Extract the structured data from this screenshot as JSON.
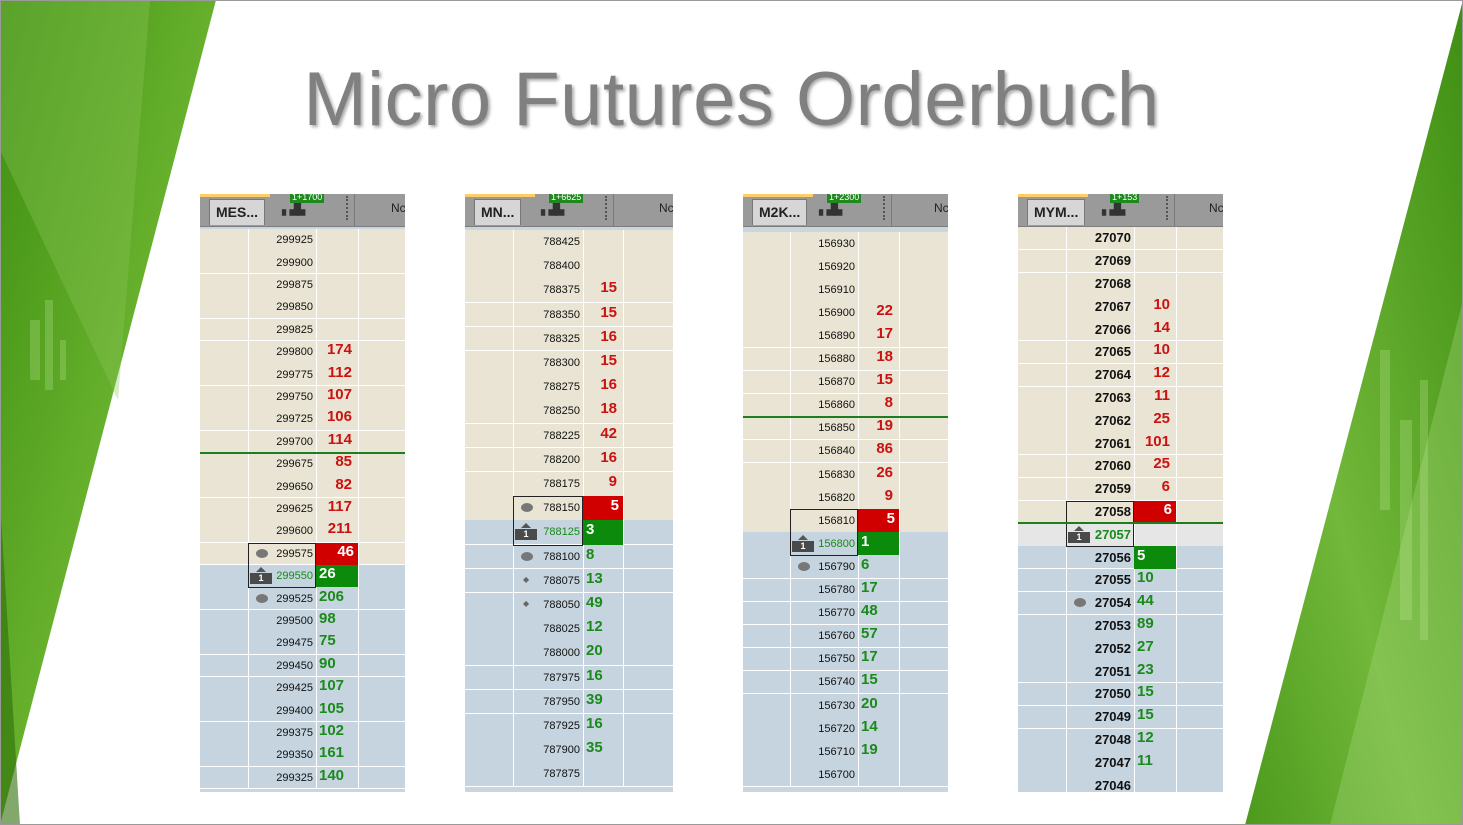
{
  "title": "Micro Futures Orderbuch",
  "colors": {
    "bg_green": "#4f9a1c",
    "ask_bg": "#e9e4d3",
    "bid_bg": "#c5d4df",
    "ask_text": "#cc1111",
    "bid_text": "#1a8a1a",
    "ask_box": "#d00000",
    "bid_box": "#0b8a0b"
  },
  "ladders": [
    {
      "symbol": "MES...",
      "delta": "1+1700",
      "header_right": "Nc",
      "last_price": "299550",
      "rows": [
        {
          "price": "299925",
          "side": "ask",
          "vol": ""
        },
        {
          "price": "299900",
          "side": "ask",
          "vol": ""
        },
        {
          "price": "299875",
          "side": "ask",
          "vol": ""
        },
        {
          "price": "299850",
          "side": "ask",
          "vol": ""
        },
        {
          "price": "299825",
          "side": "ask",
          "vol": ""
        },
        {
          "price": "299800",
          "side": "ask",
          "vol": "174"
        },
        {
          "price": "299775",
          "side": "ask",
          "vol": "112"
        },
        {
          "price": "299750",
          "side": "ask",
          "vol": "107"
        },
        {
          "price": "299725",
          "side": "ask",
          "vol": "106"
        },
        {
          "price": "299700",
          "side": "ask",
          "vol": "114"
        },
        {
          "price": "299675",
          "side": "ask",
          "vol": "85"
        },
        {
          "price": "299650",
          "side": "ask",
          "vol": "82"
        },
        {
          "price": "299625",
          "side": "ask",
          "vol": "117"
        },
        {
          "price": "299600",
          "side": "ask",
          "vol": "211"
        },
        {
          "price": "299575",
          "side": "ask",
          "vol": "46",
          "best": true,
          "order": "dot"
        },
        {
          "price": "299550",
          "side": "bid",
          "vol": "26",
          "best": true,
          "last": true,
          "position": "1"
        },
        {
          "price": "299525",
          "side": "bid",
          "vol": "206",
          "order": "dot"
        },
        {
          "price": "299500",
          "side": "bid",
          "vol": "98"
        },
        {
          "price": "299475",
          "side": "bid",
          "vol": "75"
        },
        {
          "price": "299450",
          "side": "bid",
          "vol": "90"
        },
        {
          "price": "299425",
          "side": "bid",
          "vol": "107"
        },
        {
          "price": "299400",
          "side": "bid",
          "vol": "105"
        },
        {
          "price": "299375",
          "side": "bid",
          "vol": "102"
        },
        {
          "price": "299350",
          "side": "bid",
          "vol": "161"
        },
        {
          "price": "299325",
          "side": "bid",
          "vol": "140"
        }
      ]
    },
    {
      "symbol": "MN...",
      "delta": "1+6625",
      "header_right": "Nc",
      "last_price": "788125",
      "rows": [
        {
          "price": "788425",
          "side": "ask",
          "vol": ""
        },
        {
          "price": "788400",
          "side": "ask",
          "vol": ""
        },
        {
          "price": "788375",
          "side": "ask",
          "vol": "15"
        },
        {
          "price": "788350",
          "side": "ask",
          "vol": "15"
        },
        {
          "price": "788325",
          "side": "ask",
          "vol": "16"
        },
        {
          "price": "788300",
          "side": "ask",
          "vol": "15"
        },
        {
          "price": "788275",
          "side": "ask",
          "vol": "16"
        },
        {
          "price": "788250",
          "side": "ask",
          "vol": "18"
        },
        {
          "price": "788225",
          "side": "ask",
          "vol": "42"
        },
        {
          "price": "788200",
          "side": "ask",
          "vol": "16"
        },
        {
          "price": "788175",
          "side": "ask",
          "vol": "9"
        },
        {
          "price": "788150",
          "side": "ask",
          "vol": "5",
          "best": true,
          "order": "dot"
        },
        {
          "price": "788125",
          "side": "bid",
          "vol": "3",
          "best": true,
          "last": true,
          "position": "1"
        },
        {
          "price": "788100",
          "side": "bid",
          "vol": "8",
          "order": "dot"
        },
        {
          "price": "788075",
          "side": "bid",
          "vol": "13",
          "order": "diamond"
        },
        {
          "price": "788050",
          "side": "bid",
          "vol": "49",
          "order": "diamond"
        },
        {
          "price": "788025",
          "side": "bid",
          "vol": "12"
        },
        {
          "price": "788000",
          "side": "bid",
          "vol": "20"
        },
        {
          "price": "787975",
          "side": "bid",
          "vol": "16"
        },
        {
          "price": "787950",
          "side": "bid",
          "vol": "39"
        },
        {
          "price": "787925",
          "side": "bid",
          "vol": "16"
        },
        {
          "price": "787900",
          "side": "bid",
          "vol": "35"
        },
        {
          "price": "787875",
          "side": "bid",
          "vol": ""
        }
      ]
    },
    {
      "symbol": "M2K...",
      "delta": "1+2300",
      "header_right": "Nc",
      "last_price": "156800",
      "rows": [
        {
          "price": "156930",
          "side": "ask",
          "vol": ""
        },
        {
          "price": "156920",
          "side": "ask",
          "vol": ""
        },
        {
          "price": "156910",
          "side": "ask",
          "vol": ""
        },
        {
          "price": "156900",
          "side": "ask",
          "vol": "22"
        },
        {
          "price": "156890",
          "side": "ask",
          "vol": "17"
        },
        {
          "price": "156880",
          "side": "ask",
          "vol": "18"
        },
        {
          "price": "156870",
          "side": "ask",
          "vol": "15"
        },
        {
          "price": "156860",
          "side": "ask",
          "vol": "8"
        },
        {
          "price": "156850",
          "side": "ask",
          "vol": "19"
        },
        {
          "price": "156840",
          "side": "ask",
          "vol": "86"
        },
        {
          "price": "156830",
          "side": "ask",
          "vol": "26"
        },
        {
          "price": "156820",
          "side": "ask",
          "vol": "9"
        },
        {
          "price": "156810",
          "side": "ask",
          "vol": "5",
          "best": true
        },
        {
          "price": "156800",
          "side": "bid",
          "vol": "1",
          "best": true,
          "last": true,
          "position": "1"
        },
        {
          "price": "156790",
          "side": "bid",
          "vol": "6",
          "order": "dot"
        },
        {
          "price": "156780",
          "side": "bid",
          "vol": "17"
        },
        {
          "price": "156770",
          "side": "bid",
          "vol": "48"
        },
        {
          "price": "156760",
          "side": "bid",
          "vol": "57"
        },
        {
          "price": "156750",
          "side": "bid",
          "vol": "17"
        },
        {
          "price": "156740",
          "side": "bid",
          "vol": "15"
        },
        {
          "price": "156730",
          "side": "bid",
          "vol": "20"
        },
        {
          "price": "156720",
          "side": "bid",
          "vol": "14"
        },
        {
          "price": "156710",
          "side": "bid",
          "vol": "19"
        },
        {
          "price": "156700",
          "side": "bid",
          "vol": ""
        }
      ]
    },
    {
      "symbol": "MYM...",
      "delta": "1+153",
      "header_right": "Nc",
      "last_price": "27057",
      "rows": [
        {
          "price": "27070",
          "side": "ask",
          "vol": ""
        },
        {
          "price": "27069",
          "side": "ask",
          "vol": ""
        },
        {
          "price": "27068",
          "side": "ask",
          "vol": ""
        },
        {
          "price": "27067",
          "side": "ask",
          "vol": "10"
        },
        {
          "price": "27066",
          "side": "ask",
          "vol": "14"
        },
        {
          "price": "27065",
          "side": "ask",
          "vol": "10"
        },
        {
          "price": "27064",
          "side": "ask",
          "vol": "12"
        },
        {
          "price": "27063",
          "side": "ask",
          "vol": "11"
        },
        {
          "price": "27062",
          "side": "ask",
          "vol": "25"
        },
        {
          "price": "27061",
          "side": "ask",
          "vol": "101"
        },
        {
          "price": "27060",
          "side": "ask",
          "vol": "25"
        },
        {
          "price": "27059",
          "side": "ask",
          "vol": "6"
        },
        {
          "price": "27058",
          "side": "ask",
          "vol": "6",
          "best": true
        },
        {
          "price": "27057",
          "side": "mid",
          "vol": "",
          "last": true,
          "position": "1"
        },
        {
          "price": "27056",
          "side": "bid",
          "vol": "5",
          "best": true
        },
        {
          "price": "27055",
          "side": "bid",
          "vol": "10"
        },
        {
          "price": "27054",
          "side": "bid",
          "vol": "44",
          "order": "dot"
        },
        {
          "price": "27053",
          "side": "bid",
          "vol": "89"
        },
        {
          "price": "27052",
          "side": "bid",
          "vol": "27"
        },
        {
          "price": "27051",
          "side": "bid",
          "vol": "23"
        },
        {
          "price": "27050",
          "side": "bid",
          "vol": "15"
        },
        {
          "price": "27049",
          "side": "bid",
          "vol": "15"
        },
        {
          "price": "27048",
          "side": "bid",
          "vol": "12"
        },
        {
          "price": "27047",
          "side": "bid",
          "vol": "11"
        },
        {
          "price": "27046",
          "side": "bid",
          "vol": ""
        }
      ]
    }
  ]
}
